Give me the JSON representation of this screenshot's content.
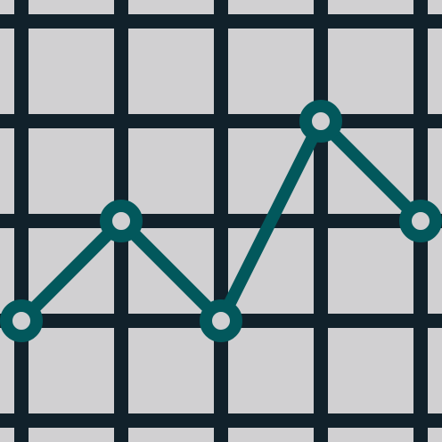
{
  "icon": {
    "name": "line-graph-icon",
    "colors": {
      "background": "#d1d0d2",
      "grid": "#11212b",
      "line": "#02585c",
      "point_fill": "#d1d0d2"
    },
    "grid": {
      "columns": 5,
      "rows": 5
    },
    "series": {
      "values": [
        1,
        2,
        1,
        3,
        2
      ]
    }
  }
}
